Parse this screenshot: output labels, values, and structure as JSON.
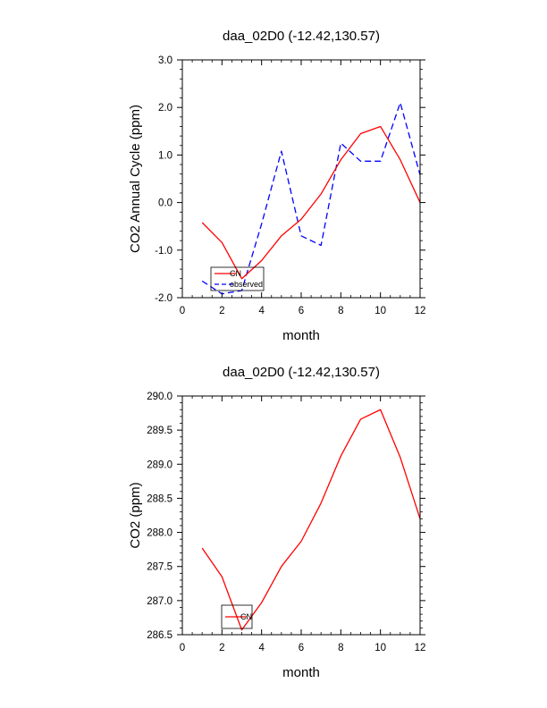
{
  "chart_data": [
    {
      "type": "line",
      "title": "daa_02D0 (-12.42,130.57)",
      "xlabel": "month",
      "ylabel": "CO2 Annual Cycle (ppm)",
      "xlim": [
        0,
        12
      ],
      "ylim": [
        -2.0,
        3.0
      ],
      "xticks": [
        0,
        2,
        4,
        6,
        8,
        10,
        12
      ],
      "xtick_labels": [
        "0",
        "2",
        "4",
        "6",
        "8",
        "10",
        "12"
      ],
      "yticks": [
        -2.0,
        -1.0,
        0.0,
        1.0,
        2.0,
        3.0
      ],
      "ytick_labels": [
        "-2.0",
        "-1.0",
        "0.0",
        "1.0",
        "2.0",
        "3.0"
      ],
      "grid": false,
      "legend_position": "bottom-left",
      "series": [
        {
          "name": "observed",
          "color": "#0000ff",
          "dash": "dashed",
          "x": [
            1,
            2,
            3,
            4,
            5,
            6,
            7,
            8,
            9,
            10,
            11,
            12
          ],
          "y": [
            -1.65,
            -1.92,
            -1.85,
            -0.45,
            1.08,
            -0.7,
            -0.9,
            1.25,
            0.87,
            0.87,
            2.1,
            0.58
          ]
        },
        {
          "name": "CN",
          "color": "#ff0000",
          "dash": "solid",
          "x": [
            1,
            2,
            3,
            4,
            5,
            6,
            7,
            8,
            9,
            10,
            11,
            12
          ],
          "y": [
            -0.42,
            -0.84,
            -1.6,
            -1.22,
            -0.7,
            -0.35,
            0.18,
            0.9,
            1.45,
            1.6,
            0.9,
            0.0
          ]
        }
      ]
    },
    {
      "type": "line",
      "title": "daa_02D0 (-12.42,130.57)",
      "xlabel": "month",
      "ylabel": "CO2 (ppm)",
      "xlim": [
        0,
        12
      ],
      "ylim": [
        286.5,
        290.0
      ],
      "xticks": [
        0,
        2,
        4,
        6,
        8,
        10,
        12
      ],
      "xtick_labels": [
        "0",
        "2",
        "4",
        "6",
        "8",
        "10",
        "12"
      ],
      "yticks": [
        286.5,
        287.0,
        287.5,
        288.0,
        288.5,
        289.0,
        289.5,
        290.0
      ],
      "ytick_labels": [
        "286.5",
        "287.0",
        "287.5",
        "288.0",
        "288.5",
        "289.0",
        "289.5",
        "290.0"
      ],
      "grid": false,
      "legend_position": "bottom-left",
      "series": [
        {
          "name": "CN",
          "color": "#ff0000",
          "dash": "solid",
          "x": [
            1,
            2,
            3,
            4,
            5,
            6,
            7,
            8,
            9,
            10,
            11,
            12
          ],
          "y": [
            287.77,
            287.35,
            286.57,
            286.97,
            287.5,
            287.87,
            288.43,
            289.12,
            289.66,
            289.8,
            289.1,
            288.2
          ]
        }
      ]
    }
  ]
}
